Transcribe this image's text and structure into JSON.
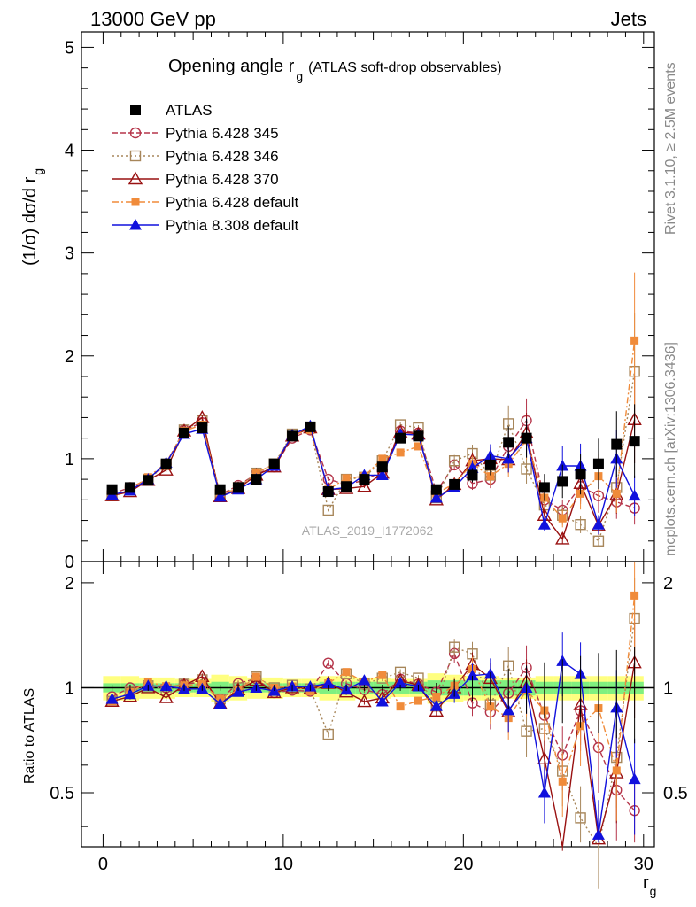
{
  "header": {
    "energy": "13000 GeV pp",
    "process": "Jets",
    "side_rivet": "Rivet 3.1.10, ≥ 2.5M events",
    "side_mcplots": "mcplots.cern.ch [arXiv:1306.3436]",
    "watermark": "ATLAS_2019_I1772062"
  },
  "chart_data": {
    "type": "scatter",
    "title_main": "Opening angle r",
    "title_sub": "g",
    "title_tail": "(ATLAS soft-drop observables)",
    "ylabel": "(1/σ) dσ/d r",
    "ylabel_sub": "g",
    "ratio_ylabel": "Ratio to ATLAS",
    "xlabel": "r",
    "xlabel_sub": "g",
    "xlim": [
      -1.2,
      30.6
    ],
    "ylim": [
      0,
      5.15
    ],
    "ratio_ylim": [
      0.35,
      2.3
    ],
    "x_ticks": [
      0,
      10,
      20,
      30
    ],
    "y_ticks": [
      0,
      1,
      2,
      3,
      4,
      5
    ],
    "ratio_ticks": [
      0.5,
      1,
      2
    ],
    "x": [
      0.5,
      1.5,
      2.5,
      3.5,
      4.5,
      5.5,
      6.5,
      7.5,
      8.5,
      9.5,
      10.5,
      11.5,
      12.5,
      13.5,
      14.5,
      15.5,
      16.5,
      17.5,
      18.5,
      19.5,
      20.5,
      21.5,
      22.5,
      23.5,
      24.5,
      25.5,
      26.5,
      27.5,
      28.5,
      29.5
    ],
    "series": [
      {
        "name": "ATLAS",
        "color": "#000000",
        "marker": "square-filled",
        "dash": "none",
        "line": false,
        "values": [
          0.7,
          0.72,
          0.79,
          0.95,
          1.25,
          1.3,
          0.7,
          0.72,
          0.8,
          0.95,
          1.22,
          1.31,
          0.68,
          0.73,
          0.8,
          0.92,
          1.2,
          1.22,
          0.7,
          0.75,
          0.84,
          0.94,
          1.16,
          1.2,
          0.72,
          0.78,
          0.85,
          0.95,
          1.14,
          1.17
        ]
      },
      {
        "name": "Pythia 6.428 345",
        "color": "#b5354a",
        "marker": "circle-open",
        "dash": "6,3",
        "values": [
          0.66,
          0.72,
          0.8,
          0.95,
          1.28,
          1.35,
          0.65,
          0.74,
          0.85,
          0.92,
          1.2,
          1.28,
          0.8,
          0.75,
          0.79,
          0.88,
          1.27,
          1.25,
          0.68,
          0.94,
          0.76,
          0.8,
          1.12,
          1.37,
          0.6,
          0.5,
          0.73,
          0.64,
          0.58,
          0.52
        ]
      },
      {
        "name": "Pythia 6.428 346",
        "color": "#a7865a",
        "marker": "square-open",
        "dash": "2,3",
        "values": [
          0.64,
          0.7,
          0.8,
          0.94,
          1.28,
          1.37,
          0.65,
          0.72,
          0.86,
          0.95,
          1.24,
          1.3,
          0.5,
          0.8,
          0.82,
          0.98,
          1.33,
          1.3,
          0.62,
          0.98,
          1.05,
          0.84,
          1.34,
          0.9,
          0.55,
          0.45,
          0.36,
          0.2,
          0.72,
          1.85
        ]
      },
      {
        "name": "Pythia 6.428 370",
        "color": "#991111",
        "marker": "triangle-open",
        "dash": "none",
        "values": [
          0.64,
          0.68,
          0.79,
          0.89,
          1.27,
          1.4,
          0.63,
          0.71,
          0.84,
          0.92,
          1.22,
          1.3,
          0.7,
          0.71,
          0.73,
          0.86,
          1.26,
          1.24,
          0.6,
          0.75,
          0.98,
          1.0,
          0.99,
          1.25,
          0.45,
          0.22,
          0.76,
          0.35,
          0.65,
          1.38
        ]
      },
      {
        "name": "Pythia 6.428 default",
        "color": "#f08b3a",
        "marker": "square-filled-small",
        "dash": "7,3,2,3",
        "values": [
          0.64,
          0.7,
          0.82,
          0.96,
          1.27,
          1.33,
          0.65,
          0.71,
          0.86,
          0.95,
          1.23,
          1.28,
          0.7,
          0.81,
          0.83,
          1.0,
          1.06,
          1.12,
          0.66,
          0.76,
          0.95,
          0.83,
          0.95,
          1.18,
          0.62,
          0.42,
          0.66,
          0.83,
          0.66,
          2.15
        ]
      },
      {
        "name": "Pythia 8.308 default",
        "color": "#1111dd",
        "marker": "triangle-filled",
        "dash": "none",
        "values": [
          0.65,
          0.69,
          0.8,
          0.96,
          1.24,
          1.29,
          0.63,
          0.7,
          0.8,
          0.93,
          1.23,
          1.32,
          0.7,
          0.72,
          0.84,
          0.84,
          1.24,
          1.23,
          0.62,
          0.72,
          0.91,
          1.03,
          1.0,
          1.2,
          0.36,
          0.93,
          0.93,
          0.36,
          1.0,
          0.64
        ]
      }
    ],
    "ratio_band": {
      "inner": [
        0.03,
        0.03,
        0.03,
        0.03,
        0.03,
        0.03,
        0.04,
        0.03,
        0.03,
        0.03,
        0.03,
        0.03,
        0.04,
        0.04,
        0.04,
        0.04,
        0.04,
        0.04,
        0.05,
        0.05,
        0.05,
        0.05,
        0.05,
        0.05,
        0.04,
        0.04,
        0.04,
        0.04,
        0.04,
        0.04
      ],
      "outer": [
        0.08,
        0.08,
        0.07,
        0.07,
        0.06,
        0.06,
        0.09,
        0.08,
        0.07,
        0.07,
        0.06,
        0.06,
        0.08,
        0.08,
        0.07,
        0.07,
        0.06,
        0.06,
        0.1,
        0.09,
        0.08,
        0.08,
        0.07,
        0.07,
        0.08,
        0.08,
        0.08,
        0.08,
        0.08,
        0.08
      ]
    },
    "legend_position": "top-left",
    "grid": false
  }
}
